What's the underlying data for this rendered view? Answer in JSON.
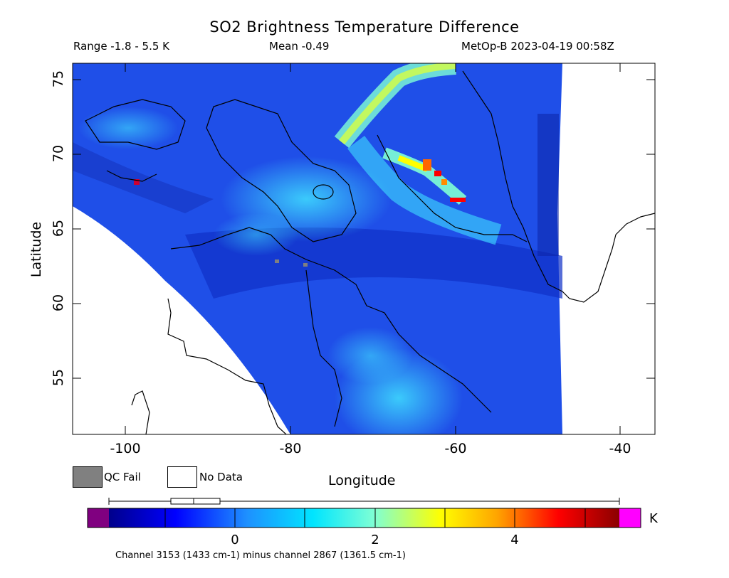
{
  "title": "SO2 Brightness Temperature Difference",
  "header": {
    "range": "Range -1.8 - 5.5 K",
    "mean": "Mean -0.49",
    "satellite_time": "MetOp-B 2023-04-19 00:58Z"
  },
  "axes": {
    "ylabel": "Latitude",
    "xlabel": "Longitude",
    "yticks": [
      "75",
      "70",
      "65",
      "60",
      "55"
    ],
    "xticks": [
      "-100",
      "-80",
      "-60",
      "-40"
    ],
    "x_range": [
      -106.5,
      -35.6
    ],
    "y_range": [
      51.5,
      76.2
    ]
  },
  "legend": {
    "qc_fail": "QC Fail",
    "no_data": "No Data",
    "qc_fail_color": "#808080",
    "no_data_color": "#ffffff"
  },
  "colorbar": {
    "unit": "K",
    "ticks": [
      "0",
      "2",
      "4"
    ],
    "min": -1.8,
    "max": 5.5,
    "under_color": "#800080",
    "over_color": "#ff00ff",
    "colors": [
      "#00008b",
      "#0000ff",
      "#1e90ff",
      "#00e5ff",
      "#7fffd4",
      "#ffff00",
      "#ffa500",
      "#ff0000",
      "#8b0000"
    ]
  },
  "footnote": "Channel 3153 (1433 cm-1) minus channel 2867 (1361.5 cm-1)",
  "chart_data": {
    "type": "heatmap",
    "title": "SO2 Brightness Temperature Difference",
    "xlabel": "Longitude",
    "ylabel": "Latitude",
    "xlim": [
      -106.5,
      -35.6
    ],
    "ylim": [
      51.5,
      76.2
    ],
    "value_range": [
      -1.8,
      5.5
    ],
    "mean": -0.49,
    "unit": "K"
  }
}
